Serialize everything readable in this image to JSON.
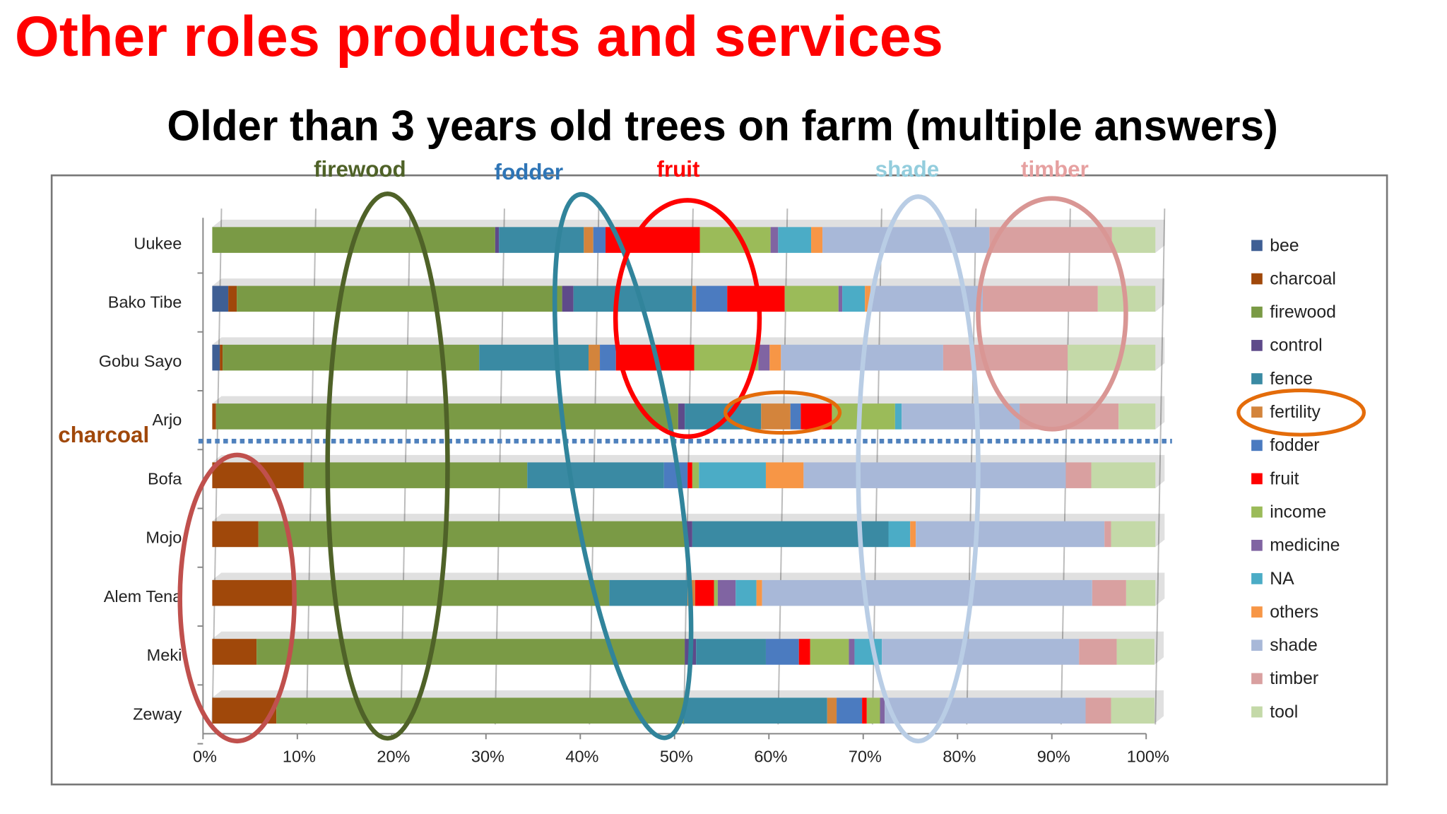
{
  "title": "Other roles products and services",
  "chart_data": {
    "type": "stacked-barh",
    "title": "Older than 3 years old trees on farm (multiple answers)",
    "categories": [
      "Uukee",
      "Bako Tibe",
      "Gobu Sayo",
      "Arjo",
      "Bofa",
      "Mojo",
      "Alem Tena",
      "Meki",
      "Zeway"
    ],
    "series": [
      {
        "name": "bee",
        "color": "#3f5f94",
        "values": [
          0,
          1.7,
          0.8,
          0,
          0,
          0,
          0,
          0,
          0
        ]
      },
      {
        "name": "charcoal",
        "color": "#a0480a",
        "values": [
          0,
          0.9,
          0.3,
          0.4,
          9.7,
          4.9,
          8.8,
          4.7,
          6.8
        ]
      },
      {
        "name": "firewood",
        "color": "#7a9a45",
        "values": [
          30,
          34.5,
          27.2,
          49,
          23.7,
          45.3,
          33.3,
          45.4,
          43.2
        ]
      },
      {
        "name": "control",
        "color": "#5e4a8a",
        "values": [
          0.4,
          1.2,
          0,
          0.7,
          0,
          0.7,
          0,
          1.2,
          0
        ]
      },
      {
        "name": "fence",
        "color": "#3a8aa3",
        "values": [
          9,
          12.6,
          11.6,
          8.1,
          14.5,
          20.8,
          8.3,
          7.4,
          15.2
        ]
      },
      {
        "name": "fertility",
        "color": "#d3843c",
        "values": [
          1,
          0.4,
          1.2,
          3.1,
          0,
          0,
          0.8,
          0,
          1
        ]
      },
      {
        "name": "fodder",
        "color": "#4b7bc0",
        "values": [
          1.3,
          3.3,
          1.7,
          1.1,
          2.5,
          0,
          0,
          3.5,
          2.7
        ]
      },
      {
        "name": "fruit",
        "color": "#ff0000",
        "values": [
          10,
          6.1,
          8.3,
          3.3,
          0.5,
          0,
          2,
          1.2,
          0.5
        ]
      },
      {
        "name": "income",
        "color": "#9bbb59",
        "values": [
          7.5,
          5.7,
          6.8,
          6.7,
          0.7,
          0,
          0.4,
          4.1,
          1.4
        ]
      },
      {
        "name": "medicine",
        "color": "#8064a2",
        "values": [
          0.8,
          0.4,
          1.2,
          0,
          0,
          0,
          1.9,
          0.6,
          0.5
        ]
      },
      {
        "name": "NA",
        "color": "#4bacc6",
        "values": [
          3.5,
          2.4,
          0,
          0.7,
          7.1,
          2.3,
          2.2,
          2.9,
          0
        ]
      },
      {
        "name": "others",
        "color": "#f79646",
        "values": [
          1.2,
          0.6,
          1.2,
          0,
          4,
          0.6,
          0.6,
          0,
          0
        ]
      },
      {
        "name": "shade",
        "color": "#a8b8d8",
        "values": [
          17.7,
          11.9,
          17.2,
          12.5,
          27.8,
          20,
          35,
          20.9,
          21.3
        ]
      },
      {
        "name": "timber",
        "color": "#d9a0a0",
        "values": [
          13,
          12.2,
          13.2,
          10.5,
          2.7,
          0.7,
          3.6,
          4,
          2.7
        ]
      },
      {
        "name": "tool",
        "color": "#c4d9a8",
        "values": [
          4.6,
          6.1,
          9.3,
          3.9,
          6.8,
          4.7,
          3.1,
          4,
          4.6
        ]
      }
    ],
    "xlim": [
      0,
      100
    ],
    "xticks": [
      {
        "value": 0,
        "label": "0%"
      },
      {
        "value": 10,
        "label": "10%"
      },
      {
        "value": 20,
        "label": "20%"
      },
      {
        "value": 30,
        "label": "30%"
      },
      {
        "value": 40,
        "label": "40%"
      },
      {
        "value": 50,
        "label": "50%"
      },
      {
        "value": 60,
        "label": "60%"
      },
      {
        "value": 70,
        "label": "70%"
      },
      {
        "value": 80,
        "label": "80%"
      },
      {
        "value": 90,
        "label": "90%"
      },
      {
        "value": 100,
        "label": "100%"
      }
    ],
    "grid": true,
    "legend": "right",
    "annotations": [
      {
        "text": "firewood",
        "color": "#4f6228"
      },
      {
        "text": "fodder",
        "color": "#2e75b6"
      },
      {
        "text": "fruit",
        "color": "#ff0000"
      },
      {
        "text": "shade",
        "color": "#93cddd"
      },
      {
        "text": "timber",
        "color": "#e6a0a0"
      },
      {
        "text": "charcoal",
        "color": "#a0480a"
      }
    ]
  }
}
